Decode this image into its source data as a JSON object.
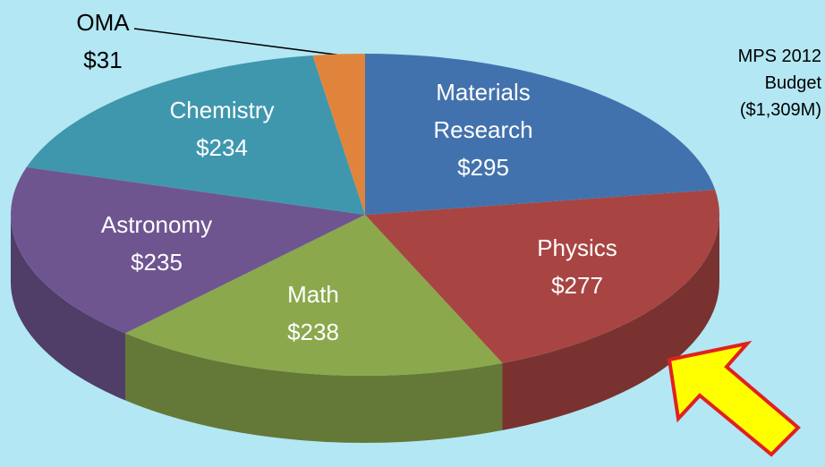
{
  "chart_data": {
    "type": "pie",
    "title": "MPS 2012 Budget ($1,309M)",
    "categories": [
      "Materials Research",
      "Physics",
      "Math",
      "Astronomy",
      "Chemistry",
      "OMA"
    ],
    "values": [
      295,
      277,
      238,
      235,
      234,
      31
    ],
    "value_labels": [
      "$295",
      "$277",
      "$238",
      "$235",
      "$234",
      "$31"
    ],
    "colors": [
      "#4272ad",
      "#a84543",
      "#8ba84d",
      "#6f5590",
      "#3f97ae",
      "#e0843c"
    ]
  }
}
